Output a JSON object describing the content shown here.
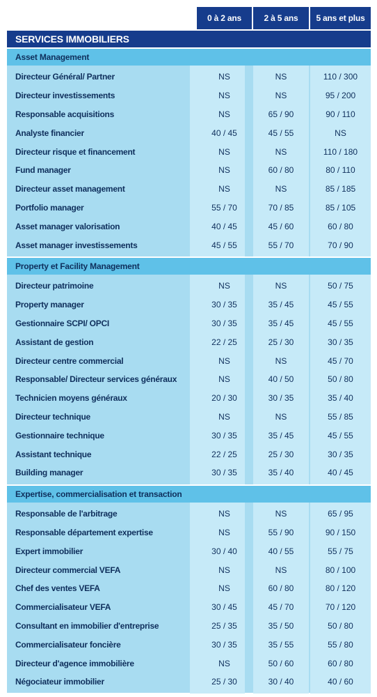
{
  "columns": [
    "0 à 2 ans",
    "2 à 5 ans",
    "5 ans et plus"
  ],
  "title": "SERVICES IMMOBILIERS",
  "colors": {
    "dark_blue": "#163c8c",
    "section_blue": "#5fc1e8",
    "row_blue": "#a8dcf1",
    "cell_blue": "#c6eaf8"
  },
  "sections": [
    {
      "name": "Asset Management",
      "rows": [
        {
          "role": "Directeur Général/ Partner",
          "values": [
            "NS",
            "NS",
            "110 / 300"
          ]
        },
        {
          "role": "Directeur investissements",
          "values": [
            "NS",
            "NS",
            "95 / 200"
          ]
        },
        {
          "role": "Responsable acquisitions",
          "values": [
            "NS",
            "65 / 90",
            "90 / 110"
          ]
        },
        {
          "role": "Analyste financier",
          "values": [
            "40 / 45",
            "45 / 55",
            "NS"
          ]
        },
        {
          "role": "Directeur risque et financement",
          "values": [
            "NS",
            "NS",
            "110 / 180"
          ]
        },
        {
          "role": "Fund manager",
          "values": [
            "NS",
            "60 / 80",
            "80 / 110"
          ]
        },
        {
          "role": "Directeur asset management",
          "values": [
            "NS",
            "NS",
            "85 / 185"
          ]
        },
        {
          "role": "Portfolio manager",
          "values": [
            "55 / 70",
            "70 / 85",
            "85 / 105"
          ]
        },
        {
          "role": "Asset manager valorisation",
          "values": [
            "40 / 45",
            "45 / 60",
            "60 / 80"
          ]
        },
        {
          "role": "Asset manager investissements",
          "values": [
            "45 / 55",
            "55 / 70",
            "70 / 90"
          ]
        }
      ]
    },
    {
      "name": "Property et Facility Management",
      "rows": [
        {
          "role": "Directeur patrimoine",
          "values": [
            "NS",
            "NS",
            "50 / 75"
          ]
        },
        {
          "role": "Property manager",
          "values": [
            "30 / 35",
            "35 / 45",
            "45 / 55"
          ]
        },
        {
          "role": "Gestionnaire SCPI/ OPCI",
          "values": [
            "30 / 35",
            "35 / 45",
            "45 / 55"
          ]
        },
        {
          "role": "Assistant de gestion",
          "values": [
            "22 / 25",
            "25 / 30",
            "30 / 35"
          ]
        },
        {
          "role": "Directeur centre commercial",
          "values": [
            "NS",
            "NS",
            "45 / 70"
          ]
        },
        {
          "role": "Responsable/ Directeur services généraux",
          "values": [
            "NS",
            "40 / 50",
            "50 / 80"
          ]
        },
        {
          "role": "Technicien moyens généraux",
          "values": [
            "20 / 30",
            "30 / 35",
            "35 / 40"
          ]
        },
        {
          "role": "Directeur technique",
          "values": [
            "NS",
            "NS",
            "55 / 85"
          ]
        },
        {
          "role": "Gestionnaire technique",
          "values": [
            "30 / 35",
            "35 / 45",
            "45 / 55"
          ]
        },
        {
          "role": "Assistant technique",
          "values": [
            "22 / 25",
            "25 / 30",
            "30 / 35"
          ]
        },
        {
          "role": "Building manager",
          "values": [
            "30 / 35",
            "35 / 40",
            "40 / 45"
          ]
        }
      ]
    },
    {
      "name": "Expertise, commercialisation et transaction",
      "rows": [
        {
          "role": "Responsable de l'arbitrage",
          "values": [
            "NS",
            "NS",
            "65 / 95"
          ]
        },
        {
          "role": "Responsable département expertise",
          "values": [
            "NS",
            "55 / 90",
            "90 / 150"
          ]
        },
        {
          "role": "Expert immobilier",
          "values": [
            "30 / 40",
            "40 / 55",
            "55 / 75"
          ]
        },
        {
          "role": "Directeur commercial VEFA",
          "values": [
            "NS",
            "NS",
            "80 / 100"
          ]
        },
        {
          "role": "Chef des ventes VEFA",
          "values": [
            "NS",
            "60 / 80",
            "80 / 120"
          ]
        },
        {
          "role": "Commercialisateur VEFA",
          "values": [
            "30 / 45",
            "45 / 70",
            "70 / 120"
          ]
        },
        {
          "role": "Consultant en immobilier d'entreprise",
          "values": [
            "25 / 35",
            "35 / 50",
            "50 / 80"
          ]
        },
        {
          "role": "Commercialisateur foncière",
          "values": [
            "30 / 35",
            "35 / 55",
            "55 / 80"
          ]
        },
        {
          "role": "Directeur d'agence immobilière",
          "values": [
            "NS",
            "50 / 60",
            "60 / 80"
          ]
        },
        {
          "role": "Négociateur immobilier",
          "values": [
            "25 / 30",
            "30 / 40",
            "40 / 60"
          ]
        }
      ]
    }
  ]
}
